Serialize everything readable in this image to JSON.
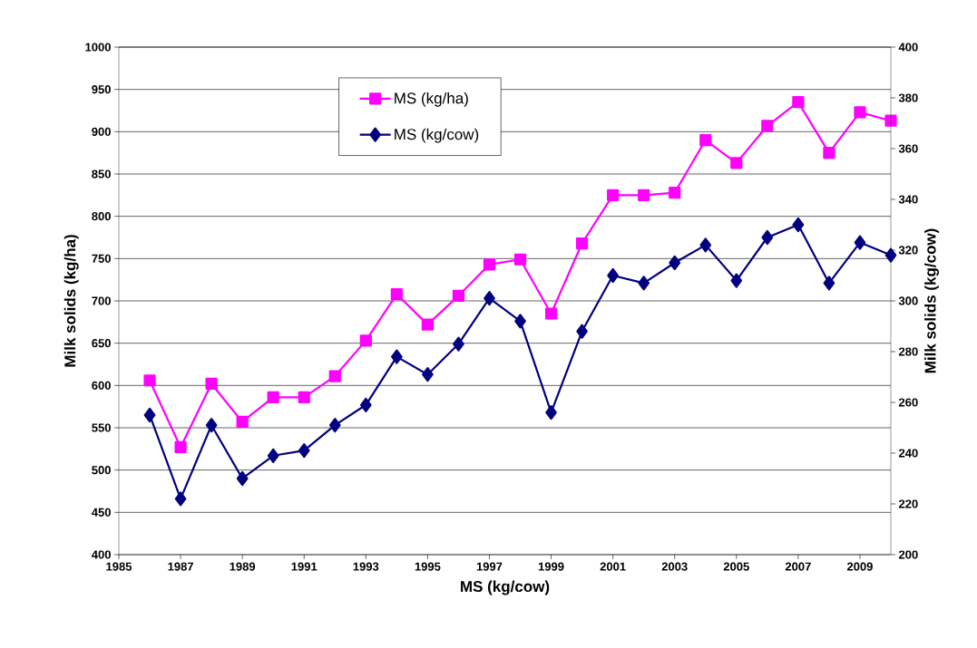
{
  "chart_data": {
    "type": "line",
    "xlabel": "MS (kg/cow)",
    "ylabel": "Milk solids (kg/ha)",
    "y2label": "Milk solids (kg/cow)",
    "x": [
      1986,
      1987,
      1988,
      1989,
      1990,
      1991,
      1992,
      1993,
      1994,
      1995,
      1996,
      1997,
      1998,
      1999,
      2000,
      2001,
      2002,
      2003,
      2004,
      2005,
      2006,
      2007,
      2008,
      2009,
      2010
    ],
    "xlim": [
      1985,
      2010
    ],
    "xticks": [
      1985,
      1987,
      1989,
      1991,
      1993,
      1995,
      1997,
      1999,
      2001,
      2003,
      2005,
      2007,
      2009
    ],
    "ylim": [
      400,
      1000
    ],
    "yticks": [
      400,
      450,
      500,
      550,
      600,
      650,
      700,
      750,
      800,
      850,
      900,
      950,
      1000
    ],
    "y2lim": [
      200,
      400
    ],
    "y2ticks": [
      200,
      220,
      240,
      260,
      280,
      300,
      320,
      340,
      360,
      380,
      400
    ],
    "grid": "y",
    "legend": "top",
    "series": [
      {
        "name": "MS (kg/ha)",
        "color": "#ff00ff",
        "marker": "square",
        "values": [
          606,
          527,
          602,
          557,
          586,
          586,
          611,
          653,
          708,
          672,
          706,
          743,
          749,
          685,
          768,
          825,
          825,
          828,
          890,
          863,
          907,
          935,
          875,
          923,
          913
        ]
      },
      {
        "name": "MS (kg/cow)",
        "color": "#000080",
        "marker": "diamond",
        "axis": "y2",
        "values": [
          255,
          222,
          251,
          230,
          239,
          241,
          251,
          259,
          278,
          271,
          283,
          301,
          292,
          256,
          288,
          310,
          307,
          315,
          322,
          308,
          325,
          330,
          307,
          323,
          318
        ]
      }
    ]
  }
}
